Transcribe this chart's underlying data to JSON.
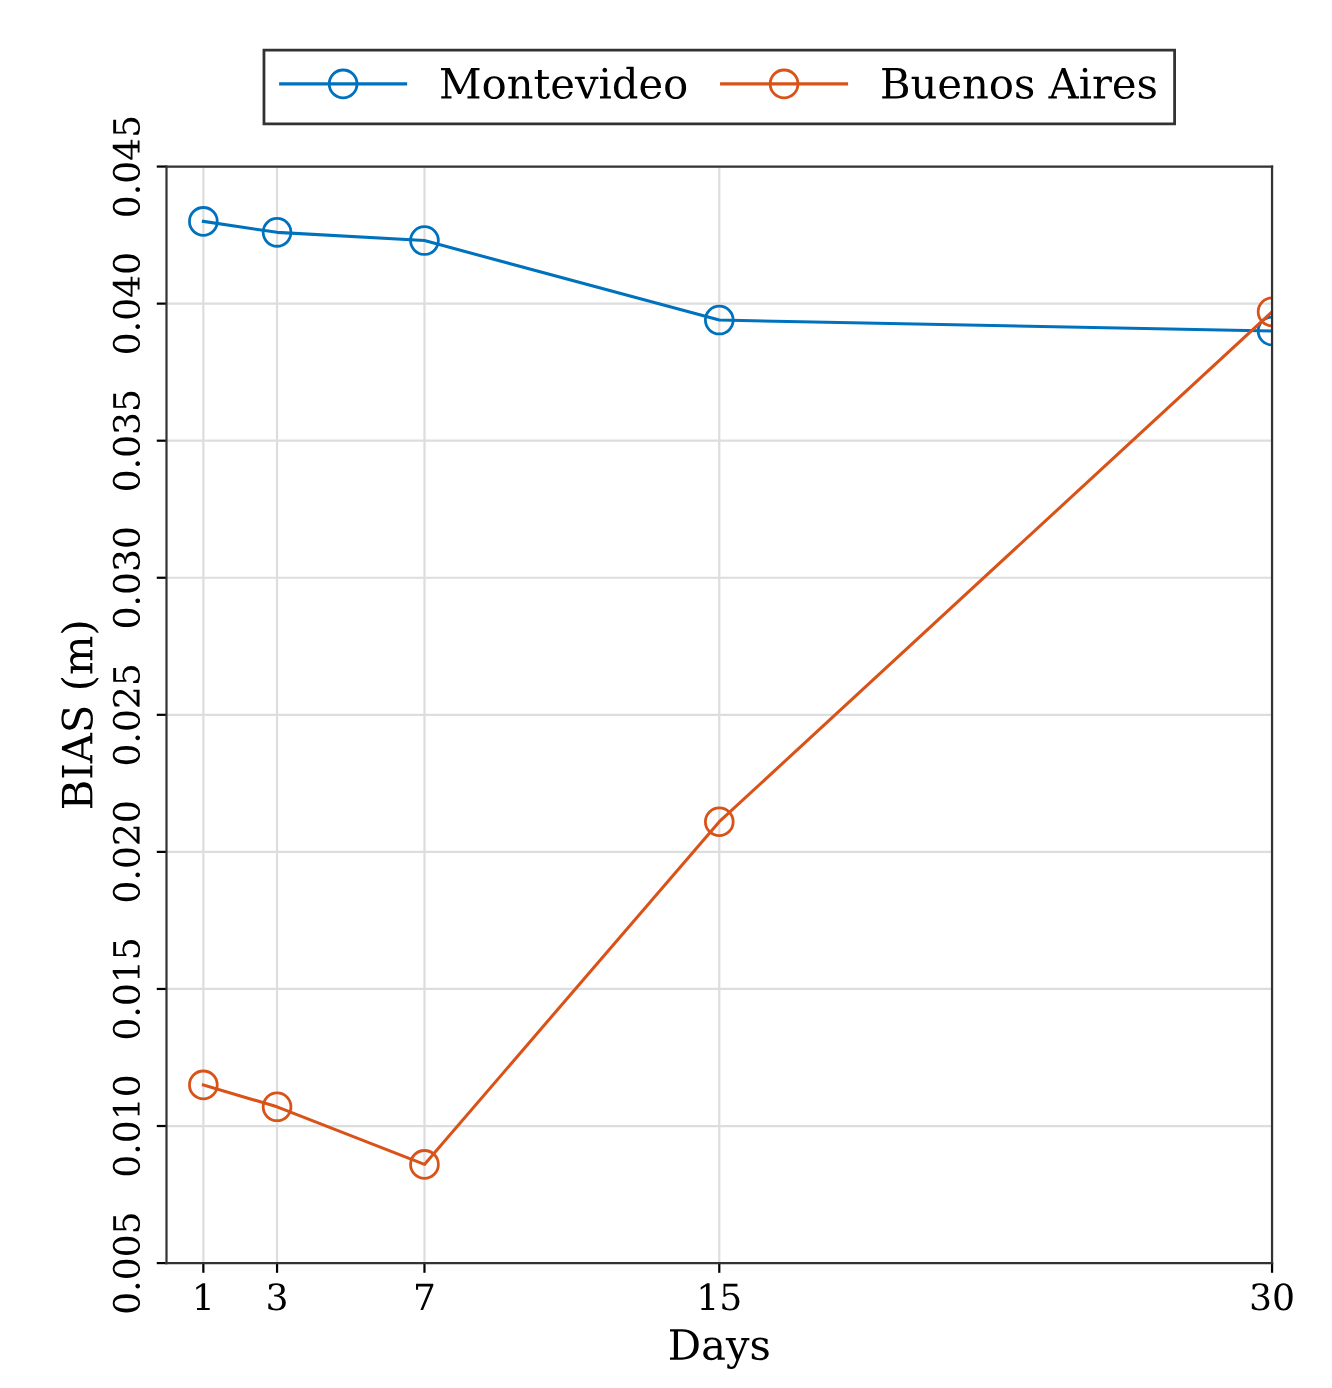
{
  "chart_data": {
    "type": "line",
    "xlabel": "Days",
    "ylabel": "BIAS (m)",
    "x": [
      1,
      3,
      7,
      15,
      30
    ],
    "series": [
      {
        "name": "Montevideo",
        "color": "#0072bd",
        "values": [
          0.043,
          0.0426,
          0.0423,
          0.0394,
          0.039
        ]
      },
      {
        "name": "Buenos Aires",
        "color": "#d95319",
        "values": [
          0.0115,
          0.0107,
          0.0086,
          0.0211,
          0.0397
        ]
      }
    ],
    "xlim": [
      0,
      30
    ],
    "xticks": [
      1,
      3,
      7,
      15,
      30
    ],
    "ylim": [
      0.005,
      0.045
    ],
    "yticks": [
      {
        "value": 0.005,
        "label": "0.005"
      },
      {
        "value": 0.01,
        "label": "0.010"
      },
      {
        "value": 0.015,
        "label": "0.015"
      },
      {
        "value": 0.02,
        "label": "0.020"
      },
      {
        "value": 0.025,
        "label": "0.025"
      },
      {
        "value": 0.03,
        "label": "0.030"
      },
      {
        "value": 0.035,
        "label": "0.035"
      },
      {
        "value": 0.04,
        "label": "0.040"
      },
      {
        "value": 0.045,
        "label": "0.045"
      }
    ],
    "grid": true,
    "legend": "top",
    "marker": "circle",
    "line_style": "solid"
  }
}
